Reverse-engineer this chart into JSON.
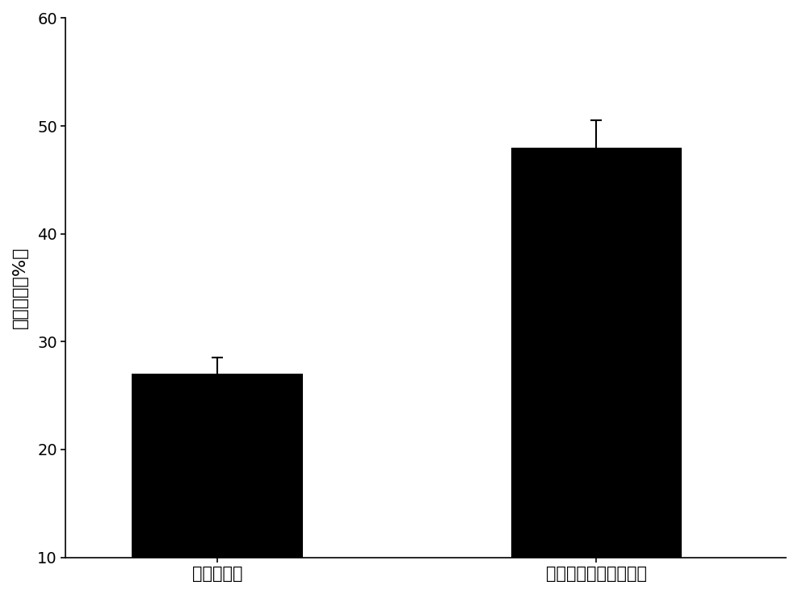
{
  "categories": [
    "无介质辅助",
    "金属螯合纳米介质辅助"
  ],
  "values": [
    27.0,
    48.0
  ],
  "errors": [
    1.5,
    2.5
  ],
  "bar_color": "#000000",
  "bar_width": 0.45,
  "ylim": [
    10,
    60
  ],
  "yticks": [
    10,
    20,
    30,
    40,
    50,
    60
  ],
  "ylabel": "复性收率（%）",
  "ylabel_fontsize": 16,
  "tick_fontsize": 14,
  "xtick_fontsize": 15,
  "background_color": "#ffffff",
  "error_capsize": 5,
  "error_linewidth": 1.5,
  "error_color": "#000000"
}
